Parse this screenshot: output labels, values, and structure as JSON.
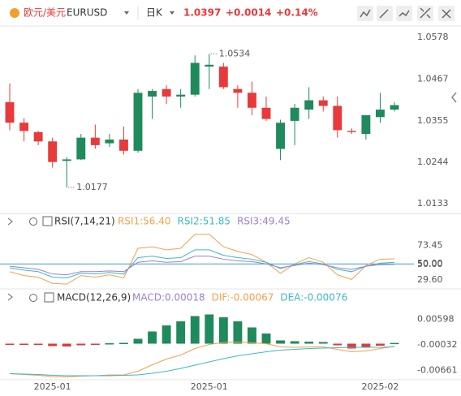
{
  "header": {
    "pair": "欧元/美元",
    "symbol": "EURUSD",
    "period": "日K",
    "price": "1.0397",
    "change": "+0.0014",
    "change_pct": "+0.14%"
  },
  "chart_data": [
    {
      "type": "candlestick",
      "categories": [
        null,
        null,
        null,
        "2025-01",
        null,
        null,
        null,
        null,
        null,
        null,
        null,
        null,
        null,
        null,
        "2025-01",
        null,
        null,
        null,
        null,
        null,
        null,
        null,
        null,
        null,
        null,
        null,
        "2025-02",
        null
      ],
      "open": [
        1.0405,
        1.035,
        1.0325,
        1.03,
        1.0248,
        1.0252,
        1.031,
        1.0295,
        1.0305,
        1.0275,
        1.042,
        1.044,
        1.042,
        1.0425,
        1.05,
        1.05,
        1.044,
        1.043,
        1.039,
        1.028,
        1.0355,
        1.0385,
        1.041,
        1.0395,
        1.0328,
        1.032,
        1.0365,
        1.0385
      ],
      "high": [
        1.0455,
        1.0362,
        1.0328,
        1.031,
        1.0258,
        1.032,
        1.0345,
        1.032,
        1.034,
        1.044,
        1.044,
        1.045,
        1.044,
        1.053,
        1.0534,
        1.051,
        1.045,
        1.046,
        1.042,
        1.0358,
        1.04,
        1.0445,
        1.042,
        1.042,
        1.0335,
        1.037,
        1.043,
        1.0405
      ],
      "low": [
        1.033,
        1.03,
        1.029,
        1.023,
        1.0177,
        1.025,
        1.028,
        1.0285,
        1.0265,
        1.027,
        1.036,
        1.04,
        1.039,
        1.042,
        1.044,
        1.044,
        1.039,
        1.037,
        1.0355,
        1.025,
        1.029,
        1.036,
        1.038,
        1.031,
        1.032,
        1.0305,
        1.035,
        1.038
      ],
      "close": [
        1.035,
        1.0328,
        1.03,
        1.0245,
        1.0252,
        1.031,
        1.029,
        1.0305,
        1.0275,
        1.043,
        1.0435,
        1.042,
        1.0425,
        1.051,
        1.0505,
        1.0445,
        1.043,
        1.039,
        1.036,
        1.035,
        1.039,
        1.041,
        1.0395,
        1.033,
        1.0325,
        1.037,
        1.0385,
        1.0397
      ],
      "up_color": "#1f8a5b",
      "down_color": "#e8393b",
      "annotations": [
        {
          "index": 14,
          "field": "high"
        },
        {
          "index": 4,
          "field": "low"
        }
      ],
      "ylim": [
        1.0114,
        1.06
      ],
      "yticks": [
        1.0578,
        1.0467,
        1.0355,
        1.0244,
        1.0133
      ]
    },
    {
      "type": "line",
      "title": "RSI(7,14,21)",
      "series": [
        {
          "name": "RSI1:56.40",
          "color": "#f5a04a",
          "values": [
            40,
            35,
            33,
            25,
            24,
            35,
            33,
            36,
            32,
            70,
            72,
            68,
            70,
            88,
            88,
            72,
            66,
            62,
            52,
            38,
            50,
            58,
            52,
            36,
            30,
            48,
            56,
            56.4
          ]
        },
        {
          "name": "RSI2:51.85",
          "color": "#3cb8c8",
          "values": [
            45,
            42,
            40,
            33,
            32,
            38,
            37,
            39,
            37,
            58,
            60,
            57,
            58,
            68,
            68,
            61,
            58,
            56,
            52,
            44,
            49,
            53,
            50,
            43,
            40,
            47,
            51,
            51.85
          ]
        },
        {
          "name": "RSI3:49.45",
          "color": "#9b7fd4",
          "values": [
            47,
            45,
            43,
            37,
            36,
            40,
            40,
            41,
            40,
            52,
            54,
            52,
            53,
            60,
            60,
            56,
            54,
            53,
            50,
            45,
            48,
            51,
            49,
            45,
            43,
            47,
            49,
            49.45
          ]
        }
      ],
      "ylim": [
        20,
        95
      ],
      "yticks": [
        {
          "value": 73.45,
          "label": "73.45"
        },
        {
          "value": 50,
          "label": "50.00"
        },
        {
          "value": 29.6,
          "label": "29.60"
        }
      ],
      "reference_line": {
        "value": 50,
        "label": "50.00"
      }
    },
    {
      "type": "macd",
      "title": "MACD(12,26,9)",
      "hist_name": "MACD:0.00018",
      "up_color": "#1f8a5b",
      "down_color": "#e03a3a",
      "hist": [
        -0.0001,
        -0.0002,
        -0.0003,
        -0.0006,
        -0.0007,
        -0.0004,
        -0.0002,
        0.0001,
        0.0002,
        0.0012,
        0.003,
        0.0045,
        0.0055,
        0.0068,
        0.0072,
        0.0065,
        0.0055,
        0.004,
        0.0025,
        0.0008,
        0.0006,
        0.0005,
        0.0004,
        -0.0004,
        -0.0012,
        -0.001,
        -0.0005,
        0.00018
      ],
      "series": [
        {
          "name": "DIF:-0.00067",
          "color": "#f5a04a",
          "values": [
            -0.0074,
            -0.0076,
            -0.0078,
            -0.0081,
            -0.0082,
            -0.008,
            -0.0079,
            -0.0077,
            -0.0077,
            -0.0068,
            -0.0052,
            -0.0038,
            -0.0028,
            -0.0012,
            -0.0002,
            0.0003,
            0.0004,
            0.0002,
            0,
            -0.0008,
            -0.0009,
            -0.0008,
            -0.0008,
            -0.0014,
            -0.002,
            -0.0018,
            -0.0012,
            -0.00067
          ]
        },
        {
          "name": "DEA:-0.00076",
          "color": "#3cb8c8",
          "values": [
            -0.0074,
            -0.0075,
            -0.0076,
            -0.0078,
            -0.0079,
            -0.0079,
            -0.0079,
            -0.0079,
            -0.0078,
            -0.0077,
            -0.0073,
            -0.0068,
            -0.0061,
            -0.0053,
            -0.0045,
            -0.0037,
            -0.003,
            -0.0025,
            -0.002,
            -0.0016,
            -0.0014,
            -0.0012,
            -0.0011,
            -0.001,
            -0.0009,
            -0.0009,
            -0.0009,
            -0.00076
          ]
        }
      ],
      "ylim": [
        -0.0085,
        0.0095
      ],
      "yticks": [
        0.00598,
        -0.00032,
        -0.00661
      ]
    }
  ]
}
